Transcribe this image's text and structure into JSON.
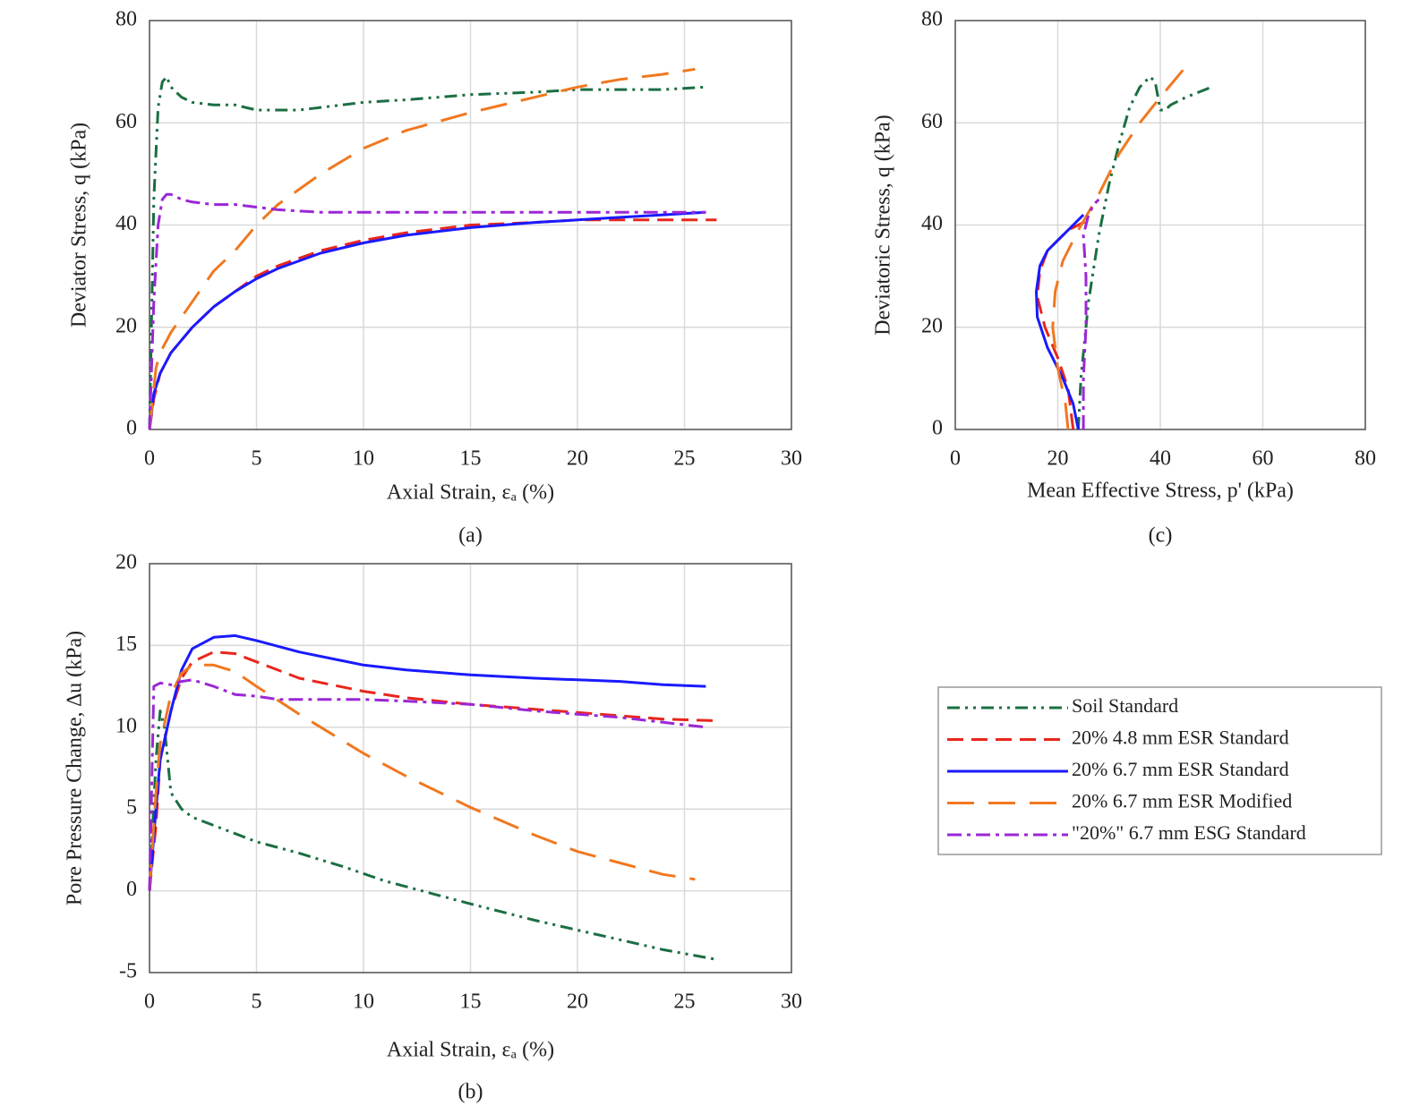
{
  "chart_data": [
    {
      "type": "line",
      "caption": "(a)",
      "xlabel": "Axial Strain, εₐ (%)",
      "ylabel": "Deviator Stress, q (kPa)",
      "xlim": [
        0,
        30
      ],
      "ylim": [
        0,
        80
      ],
      "xticks": [
        0,
        5,
        10,
        15,
        20,
        25,
        30
      ],
      "yticks": [
        0,
        20,
        40,
        60,
        80
      ],
      "grid": true,
      "series": [
        {
          "color": "#1b6e42",
          "dash_style": "dash-dot-dot",
          "x": [
            0,
            0.2,
            0.4,
            0.6,
            0.8,
            1,
            1.5,
            2,
            3,
            4,
            5,
            6,
            7,
            8,
            10,
            12,
            15,
            18,
            20,
            22,
            24,
            26
          ],
          "values": [
            0,
            45,
            63,
            68,
            69,
            67,
            65,
            64,
            63.5,
            63.5,
            62.5,
            62.5,
            62.5,
            63,
            64,
            64.5,
            65.5,
            66,
            66.5,
            66.5,
            66.5,
            67
          ]
        },
        {
          "color": "#e8261c",
          "dash_style": "dashed",
          "x": [
            0,
            0.2,
            0.5,
            1,
            2,
            3,
            4,
            5,
            6,
            8,
            10,
            12,
            15,
            18,
            20,
            22,
            24,
            26.5
          ],
          "values": [
            0,
            6,
            11,
            15,
            20,
            24,
            27,
            30,
            32,
            35,
            37,
            38.5,
            40,
            40.5,
            41,
            41,
            41,
            41
          ]
        },
        {
          "color": "#1a1aff",
          "dash_style": "solid",
          "x": [
            0,
            0.2,
            0.5,
            1,
            2,
            3,
            4,
            5,
            6,
            8,
            10,
            12,
            15,
            18,
            20,
            22,
            24,
            26
          ],
          "values": [
            0,
            7,
            11,
            15,
            20,
            24,
            27,
            29.5,
            31.5,
            34.5,
            36.5,
            38,
            39.5,
            40.5,
            41,
            41.5,
            42,
            42.5
          ]
        },
        {
          "color": "#f07820",
          "dash_style": "long-dash",
          "x": [
            0,
            0.3,
            0.5,
            1,
            2,
            3,
            4,
            5,
            6,
            8,
            10,
            12,
            15,
            18,
            20,
            22,
            24,
            25.5
          ],
          "values": [
            0,
            12,
            15,
            19,
            25,
            31,
            35,
            40,
            44,
            50,
            55,
            58.5,
            62,
            65,
            67,
            68.5,
            69.5,
            70.5
          ]
        },
        {
          "color": "#9b27d6",
          "dash_style": "dash-dot",
          "x": [
            0,
            0.2,
            0.4,
            0.6,
            0.8,
            1,
            1.5,
            2,
            3,
            4,
            5,
            6,
            8,
            10,
            12,
            15,
            18,
            20,
            22,
            24,
            26
          ],
          "values": [
            0,
            25,
            40,
            45,
            46,
            46,
            45,
            44.5,
            44,
            44,
            43.5,
            43,
            42.5,
            42.5,
            42.5,
            42.5,
            42.5,
            42.5,
            42.5,
            42.5,
            42.5
          ]
        }
      ]
    },
    {
      "type": "line",
      "caption": "(c)",
      "xlabel": "Mean Effective Stress, p' (kPa)",
      "ylabel": "Deviatoric Stress, q (kPa)",
      "xlim": [
        0,
        80
      ],
      "ylim": [
        0,
        80
      ],
      "xticks": [
        0,
        20,
        40,
        60,
        80
      ],
      "yticks": [
        0,
        20,
        40,
        60,
        80
      ],
      "grid": true,
      "series": [
        {
          "color": "#1b6e42",
          "dash_style": "dash-dot-dot",
          "x": [
            24,
            24.5,
            26,
            28,
            30,
            32,
            34,
            36,
            38,
            39,
            40,
            41,
            42,
            45,
            50
          ],
          "values": [
            0,
            10,
            25,
            38,
            48,
            56,
            63,
            67,
            69,
            68,
            62.5,
            62.5,
            63.5,
            65,
            67
          ]
        },
        {
          "color": "#e8261c",
          "dash_style": "dashed",
          "x": [
            23,
            22,
            20,
            17.5,
            16,
            16.5,
            18,
            20,
            22,
            24,
            26
          ],
          "values": [
            0,
            8,
            14,
            20,
            26,
            31,
            35,
            37,
            39,
            40,
            41
          ]
        },
        {
          "color": "#1a1aff",
          "dash_style": "solid",
          "x": [
            24,
            23,
            21,
            18,
            16,
            15.8,
            16.5,
            18,
            20,
            22,
            24,
            25
          ],
          "values": [
            0,
            5,
            10,
            16,
            22,
            27,
            32,
            35,
            37,
            39,
            41,
            42
          ]
        },
        {
          "color": "#f07820",
          "dash_style": "long-dash",
          "x": [
            22,
            21.5,
            20,
            19,
            19.5,
            21,
            24,
            28,
            32,
            36,
            40,
            45
          ],
          "values": [
            0,
            5,
            12,
            20,
            27,
            33,
            39,
            46,
            54,
            60,
            65,
            71
          ]
        },
        {
          "color": "#9b27d6",
          "dash_style": "dash-dot",
          "x": [
            25,
            25,
            25.5,
            25.5,
            25,
            26,
            27,
            28
          ],
          "values": [
            0,
            10,
            20,
            30,
            38,
            42,
            44,
            45
          ]
        }
      ]
    },
    {
      "type": "line",
      "caption": "(b)",
      "xlabel": "Axial Strain, εₐ (%)",
      "ylabel": "Pore Pressure Change, ∆u (kPa)",
      "xlim": [
        0,
        30
      ],
      "ylim": [
        -5,
        20
      ],
      "xticks": [
        0,
        5,
        10,
        15,
        20,
        25,
        30
      ],
      "yticks": [
        -5,
        0,
        5,
        10,
        15,
        20
      ],
      "grid": true,
      "legend": "outside right",
      "series": [
        {
          "name": "Soil Standard",
          "color": "#1b6e42",
          "dash_style": "dash-dot-dot",
          "x": [
            0,
            0.3,
            0.5,
            0.7,
            1,
            1.5,
            2,
            3,
            5,
            7,
            9,
            11,
            13,
            15,
            18,
            20,
            22,
            24,
            26.5
          ],
          "values": [
            0,
            8,
            11,
            10,
            6,
            5,
            4.5,
            4,
            3,
            2.3,
            1.5,
            0.6,
            -0.1,
            -0.8,
            -1.8,
            -2.4,
            -3,
            -3.6,
            -4.2
          ]
        },
        {
          "name": "20% 4.8 mm ESR Standard",
          "color": "#e8261c",
          "dash_style": "dashed",
          "x": [
            0,
            0.3,
            0.5,
            1,
            1.5,
            2,
            3,
            4,
            5,
            7,
            10,
            12,
            15,
            18,
            20,
            22,
            24,
            26.5
          ],
          "values": [
            0,
            4,
            8,
            11,
            13,
            14,
            14.6,
            14.5,
            14,
            13,
            12.2,
            11.8,
            11.4,
            11.1,
            10.9,
            10.7,
            10.5,
            10.4
          ]
        },
        {
          "name": "20% 6.7 mm ESR Standard",
          "color": "#1a1aff",
          "dash_style": "solid",
          "x": [
            0,
            0.3,
            0.5,
            1,
            1.5,
            2,
            3,
            4,
            5,
            7,
            10,
            12,
            15,
            18,
            20,
            22,
            24,
            26
          ],
          "values": [
            0,
            5,
            8,
            11,
            13.5,
            14.8,
            15.5,
            15.6,
            15.3,
            14.6,
            13.8,
            13.5,
            13.2,
            13,
            12.9,
            12.8,
            12.6,
            12.5
          ]
        },
        {
          "name": "20% 6.7 mm ESR Modified",
          "color": "#f07820",
          "dash_style": "long-dash",
          "x": [
            0,
            0.3,
            0.5,
            1,
            1.5,
            2,
            3,
            4,
            5,
            7,
            10,
            12,
            15,
            18,
            20,
            22,
            24,
            25.5
          ],
          "values": [
            0,
            6,
            9,
            12,
            13.3,
            13.8,
            13.8,
            13.4,
            12.5,
            10.8,
            8.4,
            7,
            5.1,
            3.4,
            2.4,
            1.7,
            1,
            0.7
          ]
        },
        {
          "name": "\"20%\" 6.7 mm ESG Standard",
          "color": "#9b27d6",
          "dash_style": "dash-dot",
          "x": [
            0,
            0.2,
            0.5,
            1,
            1.5,
            2,
            3,
            4,
            5,
            6,
            8,
            10,
            12,
            15,
            18,
            20,
            22,
            24,
            26
          ],
          "values": [
            0,
            12.5,
            12.7,
            12.6,
            12.8,
            12.9,
            12.5,
            12,
            11.9,
            11.7,
            11.7,
            11.7,
            11.6,
            11.4,
            11,
            10.8,
            10.6,
            10.3,
            10
          ]
        }
      ]
    }
  ]
}
